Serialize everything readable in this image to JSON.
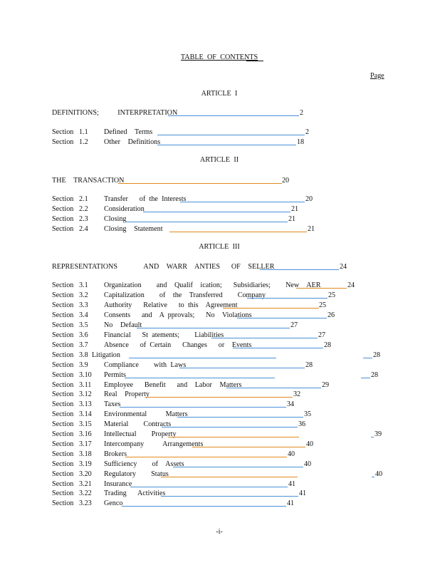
{
  "title": "TABLE OF CONTENTS",
  "page_header": "Page",
  "footer": "-i-",
  "colors": {
    "leader_blue": "#4a90d9",
    "leader_orange": "#e08a1e"
  },
  "articles": [
    {
      "label": "ARTICLE I",
      "heading": {
        "text": "DEFINITIONS;     INTERPRETATION",
        "page": "2",
        "leader": "blue"
      },
      "sections": [
        {
          "label": "Section",
          "num": "1.1",
          "title": "Defined  Terms",
          "page": "2",
          "leader": "blue"
        },
        {
          "label": "Section",
          "num": "1.2",
          "title": "Other  Definitions",
          "page": "18",
          "leader": "blue"
        }
      ]
    },
    {
      "label": "ARTICLE II",
      "heading": {
        "text": "THE  TRANSACTION",
        "page": "20",
        "leader": "orange"
      },
      "sections": [
        {
          "label": "Section",
          "num": "2.1",
          "title": "Transfer   of the Interests",
          "page": "20",
          "leader": "blue"
        },
        {
          "label": "Section",
          "num": "2.2",
          "title": "Consideration",
          "page": "21",
          "leader": "blue"
        },
        {
          "label": "Section",
          "num": "2.3",
          "title": "Closing",
          "page": "21",
          "leader": "blue"
        },
        {
          "label": "Section",
          "num": "2.4",
          "title": "Closing  Statement",
          "page": "21",
          "leader": "orange"
        }
      ]
    },
    {
      "label": "ARTICLE III",
      "heading": {
        "text": "REPRESENTATIONS       AND  WARR  ANTIES   OF  SELLER",
        "page": "24",
        "leader": "blue"
      },
      "sections": [
        {
          "label": "Section",
          "num": "3.1",
          "title": "Organization    and  Qualif  ication;   Subsidiaries;    New  AER",
          "page": "24",
          "leader": "orange"
        },
        {
          "label": "Section",
          "num": "3.2",
          "title": "Capitalization    of  the  Transferred    Company",
          "page": "25",
          "leader": "blue"
        },
        {
          "label": "Section",
          "num": "3.3",
          "title": "Authority   Relative   to this  Agreement",
          "page": "25",
          "leader": "orange"
        },
        {
          "label": "Section",
          "num": "3.4",
          "title": "Consents   and  A pprovals;   No  Violations",
          "page": "26",
          "leader": "blue"
        },
        {
          "label": "Section",
          "num": "3.5",
          "title": "No  Default",
          "page": "27",
          "leader": "blue"
        },
        {
          "label": "Section",
          "num": "3.6",
          "title": "Financial   St atements;    Liabilities",
          "page": "27",
          "leader": "blue"
        },
        {
          "label": "Section",
          "num": "3.7",
          "title": "Absence   of Certain   Changes   or  Events",
          "page": "28",
          "leader": "blue"
        },
        {
          "label": "Section",
          "num": "3.8",
          "title": "Litigation",
          "page": "28",
          "leader": "blue"
        },
        {
          "label": "Section",
          "num": "3.9",
          "title": "Compliance    with Laws",
          "page": "28",
          "leader": "blue"
        },
        {
          "label": "Section",
          "num": "3.10",
          "title": "Permits",
          "page": "28",
          "leader": "blue"
        },
        {
          "label": "Section",
          "num": "3.11",
          "title": "Employee   Benefit   and  Labor  Matters",
          "page": "29",
          "leader": "blue"
        },
        {
          "label": "Section",
          "num": "3.12",
          "title": "Real  Property",
          "page": "32",
          "leader": "orange"
        },
        {
          "label": "Section",
          "num": "3.13",
          "title": "Taxes",
          "page": "34",
          "leader": "blue"
        },
        {
          "label": "Section",
          "num": "3.14",
          "title": "Environmental     Matters",
          "page": "35",
          "leader": "blue"
        },
        {
          "label": "Section",
          "num": "3.15",
          "title": "Material    Contracts",
          "page": "36",
          "leader": "blue"
        },
        {
          "label": "Section",
          "num": "3.16",
          "title": "Intellectual    Property",
          "page": "39",
          "leader": "orange"
        },
        {
          "label": "Section",
          "num": "3.17",
          "title": "Intercompany     Arrangements",
          "page": "40",
          "leader": "orange"
        },
        {
          "label": "Section",
          "num": "3.18",
          "title": "Brokers",
          "page": "40",
          "leader": "orange"
        },
        {
          "label": "Section",
          "num": "3.19",
          "title": "Sufficiency    of  Assets",
          "page": "40",
          "leader": "blue"
        },
        {
          "label": "Section",
          "num": "3.20",
          "title": "Regulatory    Status",
          "page": "40",
          "leader": "orange"
        },
        {
          "label": "Section",
          "num": "3.21",
          "title": "Insurance",
          "page": "41",
          "leader": "blue"
        },
        {
          "label": "Section",
          "num": "3.22",
          "title": "Trading   Activities",
          "page": "41",
          "leader": "blue"
        },
        {
          "label": "Section",
          "num": "3.23",
          "title": "Genco",
          "page": "41",
          "leader": "blue"
        }
      ]
    }
  ]
}
